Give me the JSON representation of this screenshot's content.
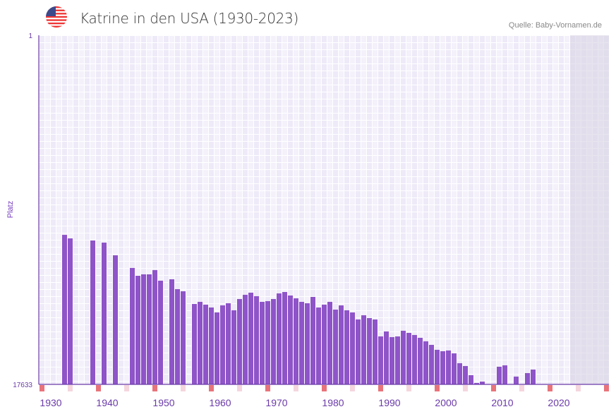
{
  "header": {
    "title": "Katrine in den USA (1930-2023)",
    "source": "Quelle: Baby-Vornamen.de",
    "flag_icon": "us-flag-icon"
  },
  "colors": {
    "bar": "#8e54c8",
    "axis": "#6a3aa8",
    "grid_a": "#eeeaf8",
    "grid_b": "#f4f1fb",
    "future_shade": "#e2dfeb",
    "marker_strong": "#e8737a",
    "marker_light": "#f5d6de"
  },
  "chart_data": {
    "type": "bar",
    "title": "Katrine in den USA (1930-2023)",
    "xlabel": "",
    "ylabel": "Platz",
    "ylim": [
      17633,
      1
    ],
    "y_inverted": true,
    "yticks": [
      "1",
      "17633"
    ],
    "xlim": [
      1928,
      2028
    ],
    "xticks": [
      "1930",
      "1940",
      "1950",
      "1960",
      "1970",
      "1980",
      "1990",
      "2000",
      "2010",
      "2020"
    ],
    "future_from": 2022,
    "grid": true,
    "x": [
      1932,
      1933,
      1937,
      1939,
      1941,
      1944,
      1945,
      1946,
      1947,
      1948,
      1949,
      1951,
      1952,
      1953,
      1955,
      1956,
      1957,
      1958,
      1959,
      1960,
      1961,
      1962,
      1963,
      1964,
      1965,
      1966,
      1967,
      1968,
      1969,
      1970,
      1971,
      1972,
      1973,
      1974,
      1975,
      1976,
      1977,
      1978,
      1979,
      1980,
      1981,
      1982,
      1983,
      1984,
      1985,
      1986,
      1987,
      1988,
      1989,
      1990,
      1991,
      1992,
      1993,
      1994,
      1995,
      1996,
      1997,
      1998,
      1999,
      2000,
      2001,
      2002,
      2003,
      2004,
      2005,
      2006,
      2009,
      2010,
      2012,
      2014,
      2015
    ],
    "values": [
      10082,
      10259,
      10366,
      10473,
      11114,
      11755,
      12147,
      12076,
      12076,
      11862,
      12396,
      12325,
      12824,
      12931,
      13572,
      13465,
      13607,
      13750,
      13999,
      13643,
      13536,
      13892,
      13322,
      13109,
      13002,
      13180,
      13465,
      13429,
      13322,
      13038,
      12967,
      13145,
      13287,
      13465,
      13536,
      13216,
      13750,
      13607,
      13465,
      13857,
      13643,
      13892,
      13999,
      14355,
      14141,
      14284,
      14355,
      15210,
      14961,
      15246,
      15210,
      14925,
      15032,
      15139,
      15281,
      15459,
      15637,
      15887,
      15958,
      15922,
      16065,
      16563,
      16706,
      17169,
      17561,
      17490,
      16742,
      16671,
      17240,
      17063,
      16885
    ]
  }
}
